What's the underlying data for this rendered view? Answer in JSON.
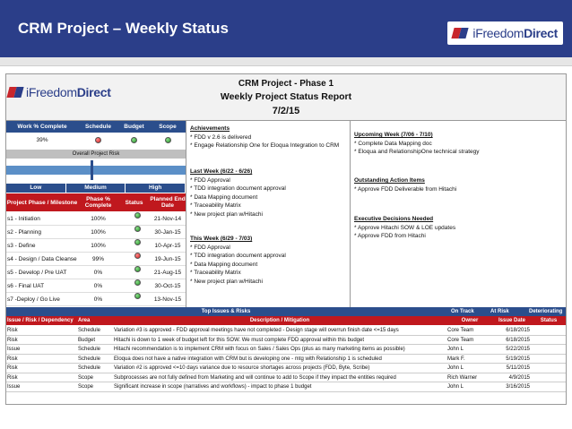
{
  "slide": {
    "title": "CRM Project – Weekly Status",
    "logo_prefix": "i",
    "logo_word1": "Freedom",
    "logo_word2": "Direct"
  },
  "report": {
    "title1": "CRM Project - Phase 1",
    "title2": "Weekly Project Status Report",
    "date": "7/2/15",
    "logo_prefix": "i",
    "logo_word1": "Freedom",
    "logo_word2": "Direct"
  },
  "status": {
    "headers": [
      "Work % Complete",
      "Schedule",
      "Budget",
      "Scope"
    ],
    "work_complete": "39%",
    "schedule": "red",
    "budget": "green",
    "scope": "green"
  },
  "risk": {
    "label": "Overall Project Risk",
    "levels": [
      "Low",
      "Medium",
      "High"
    ],
    "level_value": "Medium"
  },
  "milestones": {
    "headers": [
      "Project Phase / Milestone",
      "Phase % Complete",
      "Status",
      "Planned End Date"
    ],
    "rows": [
      {
        "name": "s1 - Initiation",
        "pct": "100%",
        "status": "green",
        "date": "21-Nov-14"
      },
      {
        "name": "s2 - Planning",
        "pct": "100%",
        "status": "green",
        "date": "30-Jan-15"
      },
      {
        "name": "s3 - Define",
        "pct": "100%",
        "status": "green",
        "date": "10-Apr-15"
      },
      {
        "name": "s4 - Design / Data Cleanse",
        "pct": "99%",
        "status": "red",
        "date": "19-Jun-15"
      },
      {
        "name": "s5 - Develop / Pre UAT",
        "pct": "0%",
        "status": "green",
        "date": "21-Aug-15"
      },
      {
        "name": "s6 - Final UAT",
        "pct": "0%",
        "status": "green",
        "date": "30-Oct-15"
      },
      {
        "name": "s7 -Deploy / Go Live",
        "pct": "0%",
        "status": "green",
        "date": "13-Nov-15"
      }
    ]
  },
  "achievements": {
    "heading": "Achievements",
    "items": [
      "* FDD v 2.6 is delivered",
      "* Engage Relationship One for Eloqua Integration to CRM"
    ]
  },
  "last_week": {
    "heading": "Last Week (6/22 - 6/26)",
    "items": [
      "* FDD Approval",
      "* TDD integration document approval",
      "* Data Mapping document",
      "* Traceability Matrix",
      "* New project plan w/Hitachi"
    ]
  },
  "this_week": {
    "heading": "This Week (6/29 - 7/03)",
    "items": [
      "* FDD Approval",
      "* TDD integration document approval",
      "* Data Mapping document",
      "* Traceability Matrix",
      "* New project plan w/Hitachi"
    ]
  },
  "upcoming": {
    "heading": "Upcoming Week (7/06 - 7/10)",
    "items": [
      "* Complete Data Mapping doc",
      "* Eloqua and RelationshipOne technical strategy"
    ]
  },
  "action_items": {
    "heading": "Outstanding Action Items",
    "items": [
      "* Approve FDD Deliverable from Hitachi"
    ]
  },
  "decisions": {
    "heading": "Executive Decisions Needed",
    "items": [
      "* Approve Hitachi SOW & LOE updates",
      "* Approve FDD from Hitachi"
    ]
  },
  "top_issues": {
    "title": "Top Issues & Risks",
    "legend": [
      "On Track",
      "At Risk",
      "Deteriorating"
    ],
    "headers": [
      "Issue / Risk / Dependency",
      "Area",
      "Description / Mitigation",
      "Owner",
      "Issue Date",
      "Status"
    ],
    "rows": [
      {
        "type": "Risk",
        "area": "Schedule",
        "desc": "Variation #3 is approved - FDD approval meetings have not completed - Design stage will overrun  finish date  <=15 days",
        "owner": "Core Team",
        "date": "6/18/2015",
        "status": "red"
      },
      {
        "type": "Risk",
        "area": "Budget",
        "desc": "Hitachi is down to 1 week of budget left for this SOW.  We must complete FDD approval within this budget",
        "owner": "Core Team",
        "date": "6/18/2015",
        "status": "green"
      },
      {
        "type": "Issue",
        "area": "Schedule",
        "desc": "Hitachi recommendation is to implement CRM with focus on Sales / Sales Ops (plus as many marketing items as possible)",
        "owner": "John L",
        "date": "5/22/2015",
        "status": "green"
      },
      {
        "type": "Risk",
        "area": "Schedule",
        "desc": "Eloqua does not have a native integration with CRM but is developing one - mtg with Relationship 1 is scheduled",
        "owner": "Mark F.",
        "date": "5/19/2015",
        "status": "green"
      },
      {
        "type": "Risk",
        "area": "Schedule",
        "desc": "Variation #2 is approved <=10 days variance due to resource shortages across projects (FDD, Byte, Scribe)",
        "owner": "John L",
        "date": "5/11/2015",
        "status": "green"
      },
      {
        "type": "Risk",
        "area": "Scope",
        "desc": "Subprocesses are not fully defined from Marketing and will continue to add to Scope if they impact the entities required",
        "owner": "Rich Warner",
        "date": "4/9/2015",
        "status": "amber"
      },
      {
        "type": "Issue",
        "area": "Scope",
        "desc": "Significant increase in scope (narratives and workflows) - impact to phase 1 budget",
        "owner": "John L",
        "date": "3/16/2015",
        "status": "amber"
      }
    ]
  }
}
